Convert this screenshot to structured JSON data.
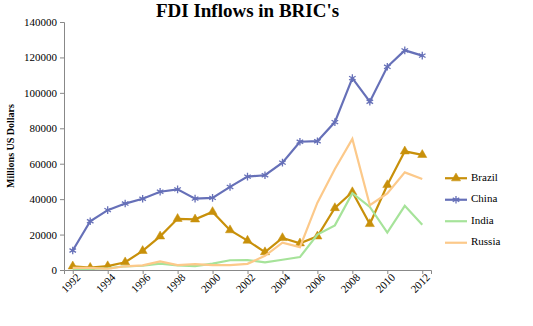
{
  "chart_data": {
    "type": "line",
    "title": "FDI Inflows in BRIC's",
    "y_label": "Millions US Dollars",
    "x": [
      1992,
      1993,
      1994,
      1995,
      1996,
      1997,
      1998,
      1999,
      2000,
      2001,
      2002,
      2003,
      2004,
      2005,
      2006,
      2007,
      2008,
      2009,
      2010,
      2011,
      2012
    ],
    "xlim": [
      1991.5,
      2012.5
    ],
    "xticks": [
      1992,
      1994,
      1996,
      1998,
      2000,
      2002,
      2004,
      2006,
      2008,
      2010,
      2012
    ],
    "ylim": [
      0,
      140000
    ],
    "yticks": [
      0,
      20000,
      40000,
      60000,
      80000,
      100000,
      120000,
      140000
    ],
    "grid": false,
    "legend": "right",
    "series": [
      {
        "name": "Brazil",
        "color": "#c8900a",
        "marker": "triangle",
        "values": [
          2100,
          1300,
          2200,
          4400,
          10800,
          19000,
          28900,
          28600,
          32800,
          22500,
          16600,
          10100,
          18100,
          15100,
          19000,
          35000,
          44000,
          26000,
          48000,
          67000,
          65000
        ]
      },
      {
        "name": "China",
        "color": "#6670b8",
        "marker": "asterisk",
        "values": [
          11000,
          27500,
          33800,
          37500,
          40200,
          44200,
          45500,
          40300,
          40700,
          46900,
          52700,
          53500,
          60600,
          72400,
          72700,
          83500,
          108300,
          95000,
          114700,
          124000,
          121000
        ]
      },
      {
        "name": "India",
        "color": "#a6e39a",
        "marker": "none",
        "values": [
          300,
          600,
          1000,
          2100,
          2400,
          3600,
          2600,
          2200,
          3600,
          5500,
          5600,
          4300,
          5800,
          7300,
          20000,
          25200,
          43400,
          35600,
          21100,
          36200,
          25500
        ]
      },
      {
        "name": "Russia",
        "color": "#fcc98a",
        "marker": "none",
        "values": [
          1200,
          1200,
          700,
          2100,
          2600,
          4900,
          2800,
          3300,
          2700,
          2700,
          3500,
          8000,
          15400,
          12900,
          38000,
          57000,
          74000,
          36600,
          43200,
          55100,
          51400
        ]
      }
    ]
  }
}
